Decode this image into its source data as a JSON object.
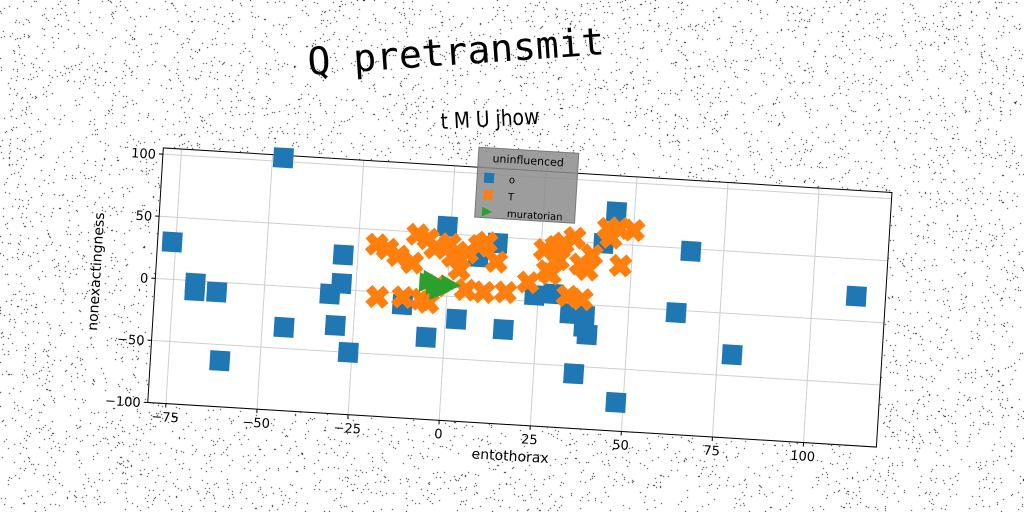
{
  "chart_data": {
    "type": "scatter",
    "title": "Q pretransmit",
    "subtitle": "t M U jhow",
    "xlabel": "entothorax",
    "ylabel": "nonexactingness",
    "xlim": [
      -80,
      120
    ],
    "ylim": [
      -100,
      105
    ],
    "xticks": [
      -75,
      -50,
      -25,
      0,
      25,
      50,
      75,
      100
    ],
    "yticks": [
      -100,
      -50,
      0,
      50,
      100
    ],
    "grid": true,
    "legend": {
      "title": "uninfluenced",
      "placement": "top-center"
    },
    "series": [
      {
        "name": "o",
        "marker": "square",
        "color": "#1f77b4",
        "points": [
          [
            -47,
            103
          ],
          [
            -76,
            30
          ],
          [
            -69,
            -2
          ],
          [
            -69,
            -8
          ],
          [
            -63,
            -8
          ],
          [
            -61,
            -63
          ],
          [
            -44,
            -33
          ],
          [
            -29,
            28
          ],
          [
            -29,
            5
          ],
          [
            -32,
            -4
          ],
          [
            -30,
            -29
          ],
          [
            -26,
            -50
          ],
          [
            -12,
            -9
          ],
          [
            -5,
            -34
          ],
          [
            -1,
            56
          ],
          [
            3,
            -18
          ],
          [
            8,
            33
          ],
          [
            13,
            45
          ],
          [
            16,
            -24
          ],
          [
            24,
            5
          ],
          [
            29,
            7
          ],
          [
            34,
            -8
          ],
          [
            36,
            -56
          ],
          [
            38,
            -9
          ],
          [
            38,
            -18
          ],
          [
            39,
            -24
          ],
          [
            42,
            50
          ],
          [
            45,
            76
          ],
          [
            48,
            -77
          ],
          [
            63,
            -2
          ],
          [
            66,
            48
          ],
          [
            79,
            -33
          ],
          [
            112,
            20
          ]
        ]
      },
      {
        "name": "T",
        "marker": "x",
        "color": "#ff7f0e",
        "points": [
          [
            -20,
            38
          ],
          [
            -17,
            35
          ],
          [
            -14,
            30
          ],
          [
            -9,
            48
          ],
          [
            -6,
            45
          ],
          [
            -10,
            25
          ],
          [
            -4,
            38
          ],
          [
            -19,
            -4
          ],
          [
            -12,
            -3
          ],
          [
            -7,
            -4
          ],
          [
            -5,
            -6
          ],
          [
            -3,
            8
          ],
          [
            0,
            42
          ],
          [
            1,
            32
          ],
          [
            3,
            22
          ],
          [
            5,
            36
          ],
          [
            8,
            42
          ],
          [
            10,
            45
          ],
          [
            13,
            30
          ],
          [
            5,
            6
          ],
          [
            10,
            5
          ],
          [
            16,
            6
          ],
          [
            26,
            42
          ],
          [
            27,
            25
          ],
          [
            29,
            45
          ],
          [
            30,
            35
          ],
          [
            31,
            48
          ],
          [
            34,
            53
          ],
          [
            36,
            32
          ],
          [
            33,
            6
          ],
          [
            37,
            4
          ],
          [
            39,
            40
          ],
          [
            38,
            28
          ],
          [
            43,
            62
          ],
          [
            46,
            63
          ],
          [
            50,
            62
          ],
          [
            44,
            55
          ],
          [
            47,
            33
          ],
          [
            22,
            15
          ],
          [
            28,
            23
          ]
        ]
      },
      {
        "name": "muratorian",
        "marker": "triangle",
        "color": "#2ca02c",
        "points": [
          [
            -5,
            10
          ],
          [
            -3,
            8
          ],
          [
            -1,
            6
          ],
          [
            -4,
            12
          ],
          [
            1,
            9
          ],
          [
            -2,
            4
          ]
        ]
      }
    ]
  }
}
